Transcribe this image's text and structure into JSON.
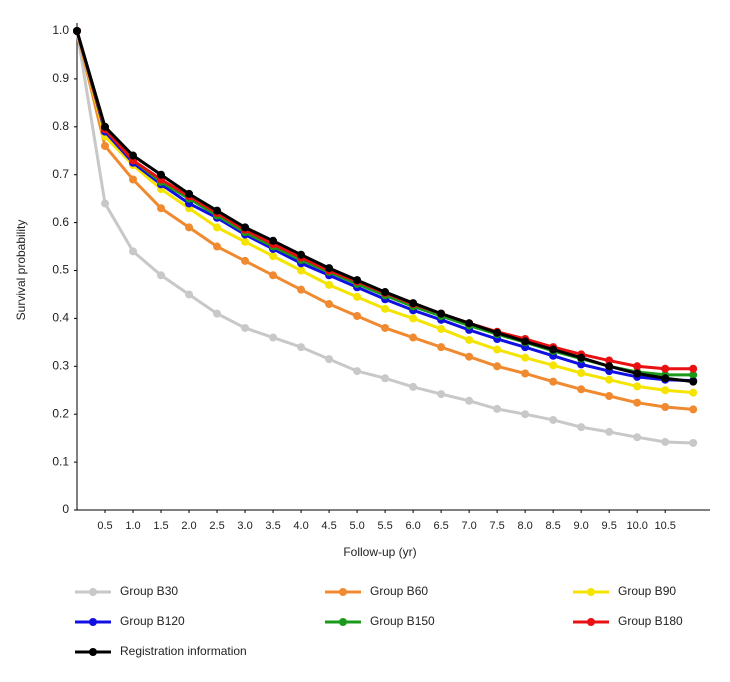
{
  "chart_data": {
    "type": "line",
    "x": [
      0,
      0.5,
      1,
      1.5,
      2,
      2.5,
      3,
      3.5,
      4,
      4.5,
      5,
      5.5,
      6,
      6.5,
      7,
      7.5,
      8,
      8.5,
      9,
      9.5,
      10,
      10.5,
      11
    ],
    "xlabel": "Follow-up (yr)",
    "ylabel": "Survival probability",
    "xlim": [
      0,
      11.3
    ],
    "ylim": [
      0,
      1
    ],
    "xticks": [
      0.5,
      {
        "value": 1,
        "label": "1.0"
      },
      1.5,
      {
        "value": 2,
        "label": "2.0"
      },
      2.5,
      {
        "value": 3,
        "label": "3.0"
      },
      3.5,
      {
        "value": 4,
        "label": "4.0"
      },
      4.5,
      {
        "value": 5,
        "label": "5.0"
      },
      5.5,
      {
        "value": 6,
        "label": "6.0"
      },
      6.5,
      {
        "value": 7,
        "label": "7.0"
      },
      7.5,
      {
        "value": 8,
        "label": "8.0"
      },
      8.5,
      {
        "value": 9,
        "label": "9.0"
      },
      9.5,
      {
        "value": 10,
        "label": "10.0"
      },
      10.5
    ],
    "yticks": [
      0,
      0.1,
      0.2,
      0.3,
      0.4,
      0.5,
      0.6,
      0.7,
      0.8,
      0.9,
      {
        "value": 1,
        "label": "1.0"
      }
    ],
    "series": [
      {
        "name": "Group B30",
        "color": "#c8c8c8",
        "values": [
          1.0,
          0.64,
          0.54,
          0.49,
          0.45,
          0.41,
          0.38,
          0.36,
          0.34,
          0.315,
          0.29,
          0.275,
          0.257,
          0.242,
          0.228,
          0.211,
          0.2,
          0.188,
          0.173,
          0.163,
          0.152,
          0.142,
          0.14
        ]
      },
      {
        "name": "Group B60",
        "color": "#f08a30",
        "values": [
          1.0,
          0.76,
          0.69,
          0.63,
          0.59,
          0.55,
          0.52,
          0.49,
          0.46,
          0.43,
          0.405,
          0.38,
          0.36,
          0.34,
          0.32,
          0.3,
          0.285,
          0.268,
          0.252,
          0.238,
          0.224,
          0.215,
          0.21
        ]
      },
      {
        "name": "Group B90",
        "color": "#f5e400",
        "values": [
          1.0,
          0.78,
          0.72,
          0.67,
          0.63,
          0.59,
          0.56,
          0.53,
          0.5,
          0.47,
          0.445,
          0.42,
          0.4,
          0.378,
          0.355,
          0.335,
          0.318,
          0.302,
          0.286,
          0.272,
          0.258,
          0.25,
          0.245
        ]
      },
      {
        "name": "Group B120",
        "color": "#1010e0",
        "values": [
          1.0,
          0.79,
          0.725,
          0.68,
          0.64,
          0.61,
          0.575,
          0.545,
          0.515,
          0.49,
          0.465,
          0.44,
          0.417,
          0.397,
          0.376,
          0.357,
          0.34,
          0.322,
          0.304,
          0.29,
          0.278,
          0.272,
          0.27
        ]
      },
      {
        "name": "Group B150",
        "color": "#1a9a1a",
        "values": [
          1.0,
          0.795,
          0.73,
          0.685,
          0.65,
          0.615,
          0.58,
          0.55,
          0.522,
          0.497,
          0.472,
          0.448,
          0.425,
          0.405,
          0.385,
          0.367,
          0.35,
          0.332,
          0.316,
          0.3,
          0.288,
          0.282,
          0.282
        ]
      },
      {
        "name": "Group B180",
        "color": "#e81010",
        "values": [
          1.0,
          0.795,
          0.73,
          0.69,
          0.655,
          0.62,
          0.585,
          0.555,
          0.527,
          0.5,
          0.477,
          0.453,
          0.43,
          0.41,
          0.39,
          0.372,
          0.357,
          0.34,
          0.325,
          0.312,
          0.3,
          0.295,
          0.295
        ]
      },
      {
        "name": "Registration information",
        "color": "#000000",
        "values": [
          1.0,
          0.8,
          0.74,
          0.7,
          0.66,
          0.625,
          0.59,
          0.562,
          0.533,
          0.505,
          0.48,
          0.455,
          0.432,
          0.41,
          0.39,
          0.37,
          0.352,
          0.335,
          0.318,
          0.3,
          0.285,
          0.275,
          0.268
        ]
      }
    ]
  }
}
